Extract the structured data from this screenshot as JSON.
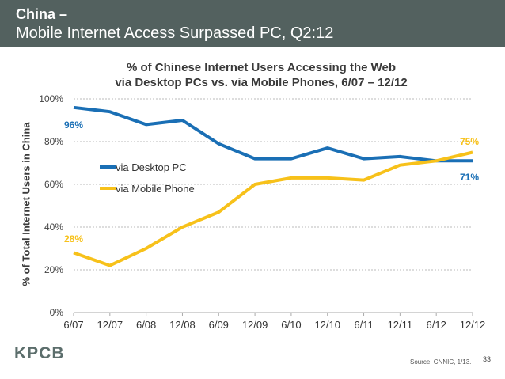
{
  "header": {
    "title": "China –",
    "subtitle": "Mobile Internet Access Surpassed PC, Q2:12"
  },
  "footer": {
    "logo": "KPCB",
    "source": "Source: CNNIC, 1/13.",
    "page_number": "33"
  },
  "colors": {
    "desktop": "#1a6fb5",
    "mobile": "#f7c11a",
    "header_bg": "#53615f"
  },
  "chart_data": {
    "type": "line",
    "title_line1": "% of Chinese Internet Users Accessing the Web",
    "title_line2": "via Desktop PCs vs. via Mobile Phones, 6/07 – 12/12",
    "xlabel": "",
    "ylabel": "% of Total Internet Users in China",
    "ylim": [
      0,
      100
    ],
    "yticks": [
      0,
      20,
      40,
      60,
      80,
      100
    ],
    "ytick_labels": [
      "0%",
      "20%",
      "40%",
      "60%",
      "80%",
      "100%"
    ],
    "grid": true,
    "categories": [
      "6/07",
      "12/07",
      "6/08",
      "12/08",
      "6/09",
      "12/09",
      "6/10",
      "12/10",
      "6/11",
      "12/11",
      "6/12",
      "12/12"
    ],
    "series": [
      {
        "name": "via Desktop PC",
        "values": [
          96,
          94,
          88,
          90,
          79,
          72,
          72,
          77,
          72,
          73,
          71,
          71
        ],
        "start_label": "96%",
        "end_label": "71%"
      },
      {
        "name": "via Mobile Phone",
        "values": [
          28,
          22,
          30,
          40,
          47,
          60,
          63,
          63,
          62,
          69,
          71,
          75
        ],
        "start_label": "28%",
        "end_label": "75%"
      }
    ],
    "legend": "center-left"
  }
}
